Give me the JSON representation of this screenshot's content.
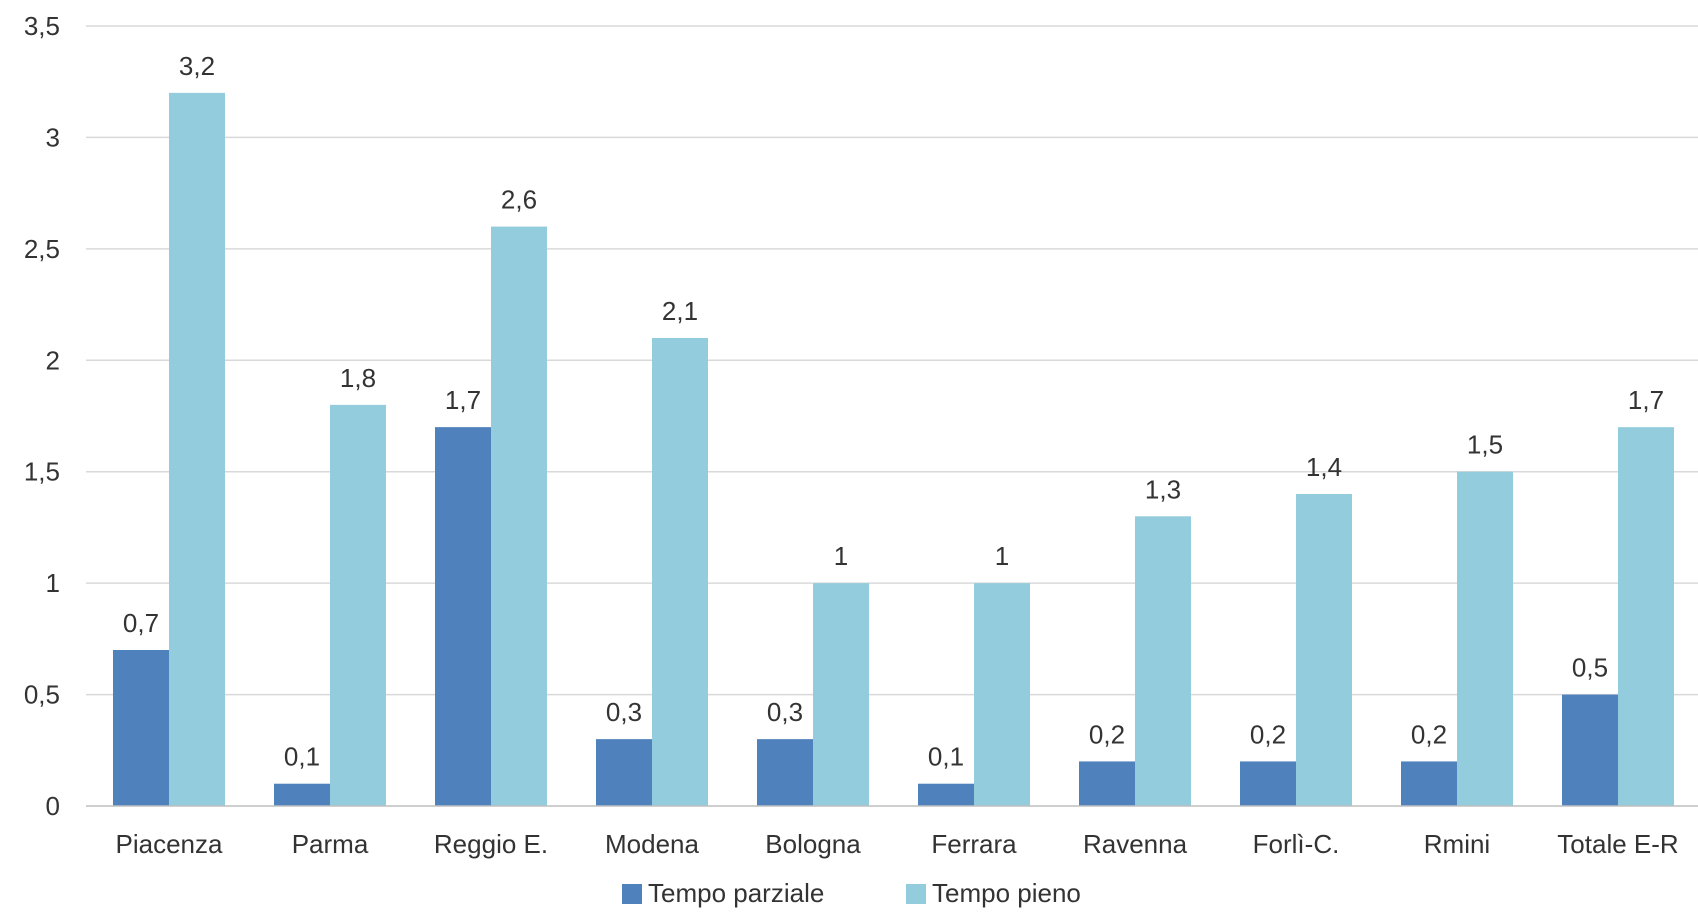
{
  "chart_data": {
    "type": "bar",
    "title": "",
    "xlabel": "",
    "ylabel": "",
    "categories": [
      "Piacenza",
      "Parma",
      "Reggio E.",
      "Modena",
      "Bologna",
      "Ferrara",
      "Ravenna",
      "Forlì-C.",
      "Rmini",
      "Totale E-R"
    ],
    "series": [
      {
        "name": "Tempo parziale",
        "color": "#4f81bd",
        "values": [
          0.7,
          0.1,
          1.7,
          0.3,
          0.3,
          0.1,
          0.2,
          0.2,
          0.2,
          0.5
        ],
        "labels": [
          "0,7",
          "0,1",
          "1,7",
          "0,3",
          "0,3",
          "0,1",
          "0,2",
          "0,2",
          "0,2",
          "0,5"
        ]
      },
      {
        "name": "Tempo pieno",
        "color": "#93cddd",
        "values": [
          3.2,
          1.8,
          2.6,
          2.1,
          1.0,
          1.0,
          1.3,
          1.4,
          1.5,
          1.7
        ],
        "labels": [
          "3,2",
          "1,8",
          "2,6",
          "2,1",
          "1",
          "1",
          "1,3",
          "1,4",
          "1,5",
          "1,7"
        ]
      }
    ],
    "ylim": [
      0,
      3.5
    ],
    "yticks": [
      0,
      0.5,
      1,
      1.5,
      2,
      2.5,
      3,
      3.5
    ],
    "ytick_labels": [
      "0",
      "0,5",
      "1",
      "1,5",
      "2",
      "2,5",
      "3",
      "3,5"
    ],
    "grid": true,
    "legend": "bottom"
  }
}
